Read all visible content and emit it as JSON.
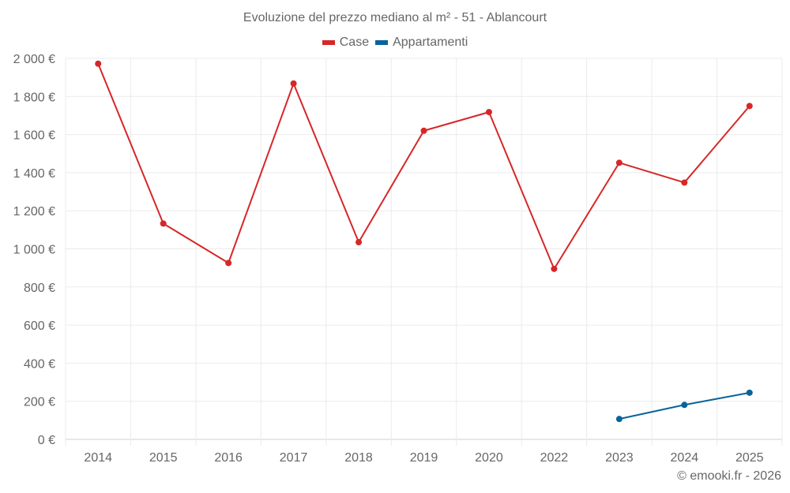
{
  "chart_data": {
    "type": "line",
    "title": "Evoluzione del prezzo mediano al m² - 51 - Ablancourt",
    "categories": [
      "2014",
      "2015",
      "2016",
      "2017",
      "2018",
      "2019",
      "2020",
      "2022",
      "2023",
      "2024",
      "2025"
    ],
    "series": [
      {
        "name": "Case",
        "color": "#d62728",
        "values": [
          1972,
          1133,
          926,
          1868,
          1035,
          1620,
          1718,
          895,
          1452,
          1348,
          1750
        ]
      },
      {
        "name": "Appartamenti",
        "color": "#08639b",
        "values": [
          null,
          null,
          null,
          null,
          null,
          null,
          null,
          null,
          107,
          181,
          245
        ]
      }
    ],
    "ylim": [
      0,
      2000
    ],
    "yticks": [
      0,
      200,
      400,
      600,
      800,
      1000,
      1200,
      1400,
      1600,
      1800,
      2000
    ],
    "ytick_labels": [
      "0 €",
      "200 €",
      "400 €",
      "600 €",
      "800 €",
      "1 000 €",
      "1 200 €",
      "1 400 €",
      "1 600 €",
      "1 800 €",
      "2 000 €"
    ],
    "grid": true,
    "legend_position": "top-center"
  },
  "credit": "© emooki.fr - 2026"
}
